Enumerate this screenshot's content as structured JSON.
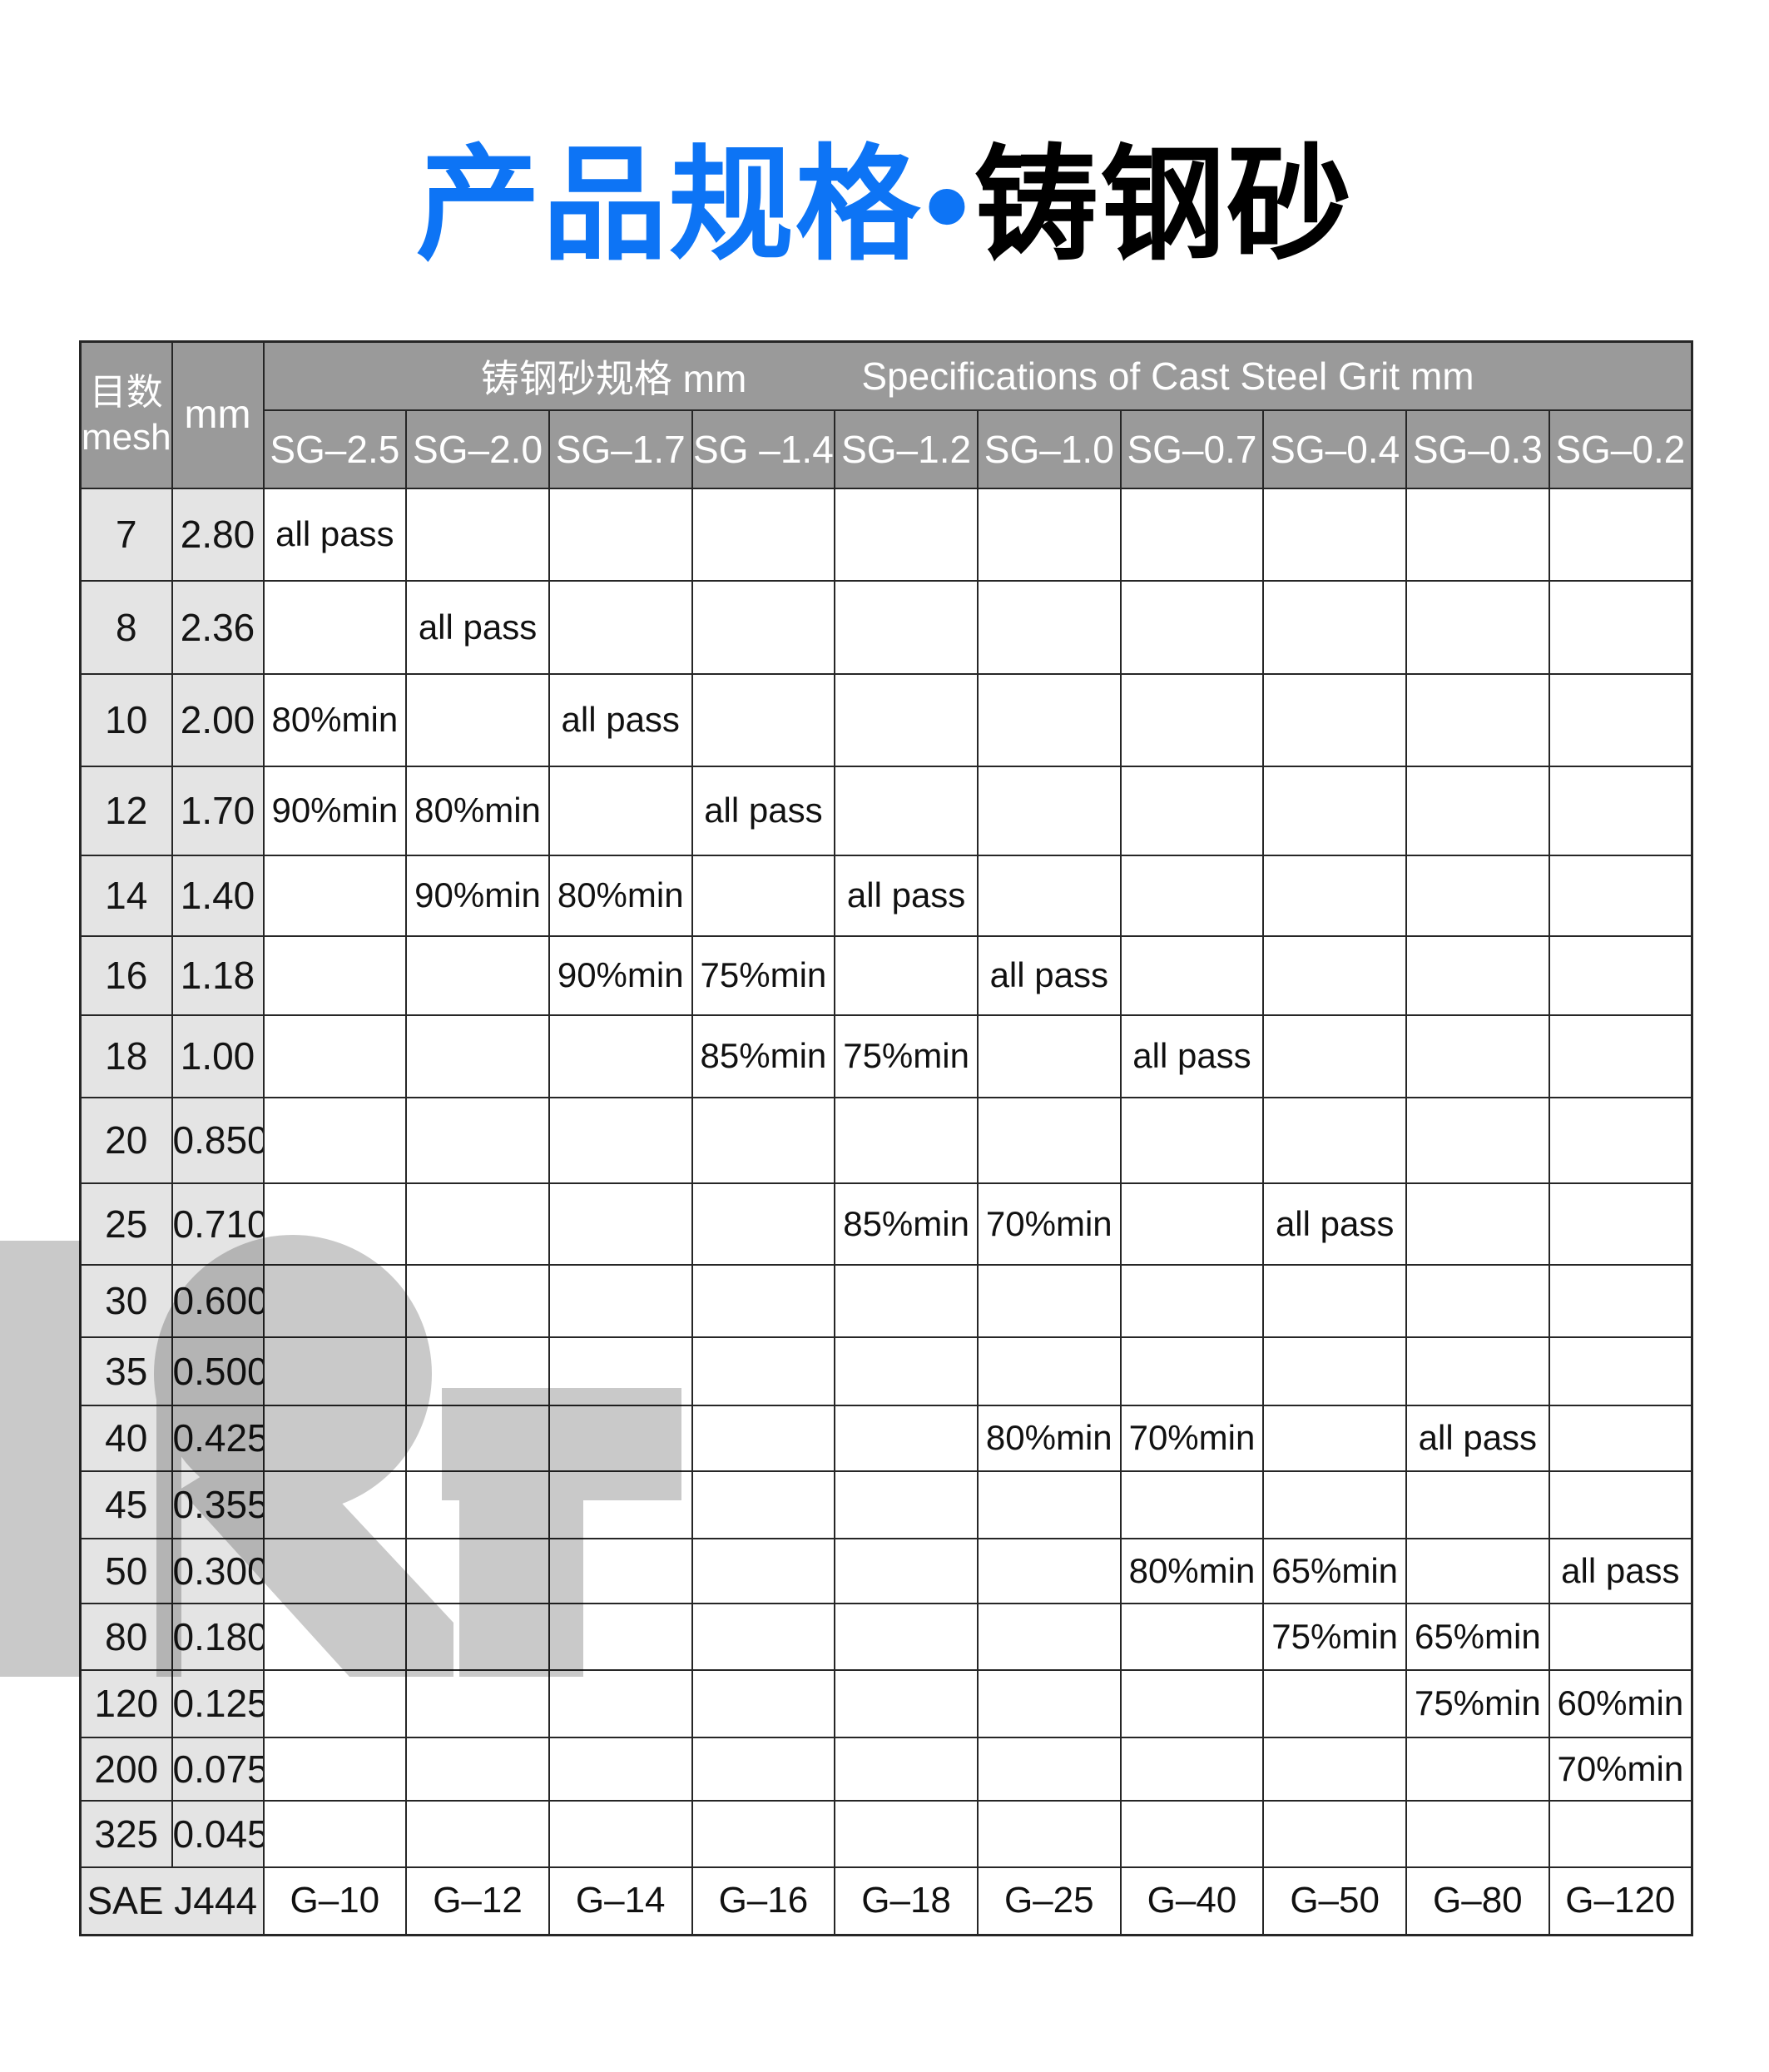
{
  "title": {
    "blue": "产品规格",
    "dot": "•",
    "black": "铸钢砂"
  },
  "table": {
    "corner_cn": "目数",
    "corner_en": "mesh",
    "mm_header": "mm",
    "group_cn": "铸钢砂规格 mm",
    "group_en": "Specifications of Cast Steel Grit mm",
    "columns": [
      "SG–2.5",
      "SG–2.0",
      "SG–1.7",
      "SG –1.4",
      "SG–1.2",
      "SG–1.0",
      "SG–0.7",
      "SG–0.4",
      "SG–0.3",
      "SG–0.2"
    ],
    "rows": [
      {
        "mesh": "7",
        "mm": "2.80",
        "cells": [
          "all pass",
          "",
          "",
          "",
          "",
          "",
          "",
          "",
          "",
          ""
        ]
      },
      {
        "mesh": "8",
        "mm": "2.36",
        "cells": [
          "",
          "all pass",
          "",
          "",
          "",
          "",
          "",
          "",
          "",
          ""
        ]
      },
      {
        "mesh": "10",
        "mm": "2.00",
        "cells": [
          "80%min",
          "",
          "all pass",
          "",
          "",
          "",
          "",
          "",
          "",
          ""
        ]
      },
      {
        "mesh": "12",
        "mm": "1.70",
        "cells": [
          "90%min",
          "80%min",
          "",
          "all pass",
          "",
          "",
          "",
          "",
          "",
          ""
        ]
      },
      {
        "mesh": "14",
        "mm": "1.40",
        "cells": [
          "",
          "90%min",
          "80%min",
          "",
          "all pass",
          "",
          "",
          "",
          "",
          ""
        ]
      },
      {
        "mesh": "16",
        "mm": "1.18",
        "cells": [
          "",
          "",
          "90%min",
          "75%min",
          "",
          "all pass",
          "",
          "",
          "",
          ""
        ]
      },
      {
        "mesh": "18",
        "mm": "1.00",
        "cells": [
          "",
          "",
          "",
          "85%min",
          "75%min",
          "",
          "all pass",
          "",
          "",
          ""
        ]
      },
      {
        "mesh": "20",
        "mm": "0.850",
        "cells": [
          "",
          "",
          "",
          "",
          "",
          "",
          "",
          "",
          "",
          ""
        ]
      },
      {
        "mesh": "25",
        "mm": "0.710",
        "cells": [
          "",
          "",
          "",
          "",
          "85%min",
          "70%min",
          "",
          "all pass",
          "",
          ""
        ]
      },
      {
        "mesh": "30",
        "mm": "0.600",
        "cells": [
          "",
          "",
          "",
          "",
          "",
          "",
          "",
          "",
          "",
          ""
        ]
      },
      {
        "mesh": "35",
        "mm": "0.500",
        "cells": [
          "",
          "",
          "",
          "",
          "",
          "",
          "",
          "",
          "",
          ""
        ]
      },
      {
        "mesh": "40",
        "mm": "0.425",
        "cells": [
          "",
          "",
          "",
          "",
          "",
          "80%min",
          "70%min",
          "",
          "all pass",
          ""
        ]
      },
      {
        "mesh": "45",
        "mm": "0.355",
        "cells": [
          "",
          "",
          "",
          "",
          "",
          "",
          "",
          "",
          "",
          ""
        ]
      },
      {
        "mesh": "50",
        "mm": "0.300",
        "cells": [
          "",
          "",
          "",
          "",
          "",
          "",
          "80%min",
          "65%min",
          "",
          "all pass"
        ]
      },
      {
        "mesh": "80",
        "mm": "0.180",
        "cells": [
          "",
          "",
          "",
          "",
          "",
          "",
          "",
          "75%min",
          "65%min",
          ""
        ]
      },
      {
        "mesh": "120",
        "mm": "0.125",
        "cells": [
          "",
          "",
          "",
          "",
          "",
          "",
          "",
          "",
          "75%min",
          "60%min"
        ]
      },
      {
        "mesh": "200",
        "mm": "0.075",
        "cells": [
          "",
          "",
          "",
          "",
          "",
          "",
          "",
          "",
          "",
          "70%min"
        ]
      },
      {
        "mesh": "325",
        "mm": "0.045",
        "cells": [
          "",
          "",
          "",
          "",
          "",
          "",
          "",
          "",
          "",
          ""
        ]
      }
    ],
    "footer": {
      "label": "SAE J444",
      "cells": [
        "G–10",
        "G–12",
        "G–14",
        "G–16",
        "G–18",
        "G–25",
        "G–40",
        "G–50",
        "G–80",
        "G–120"
      ]
    }
  },
  "icons": {
    "watermark": "rt-logo"
  },
  "colors": {
    "accent_blue": "#0d74f5",
    "header_gray": "#9a9a9a",
    "label_gray": "#e4e4e4",
    "line": "#262626",
    "watermark_gray": "#c9c9c9"
  }
}
